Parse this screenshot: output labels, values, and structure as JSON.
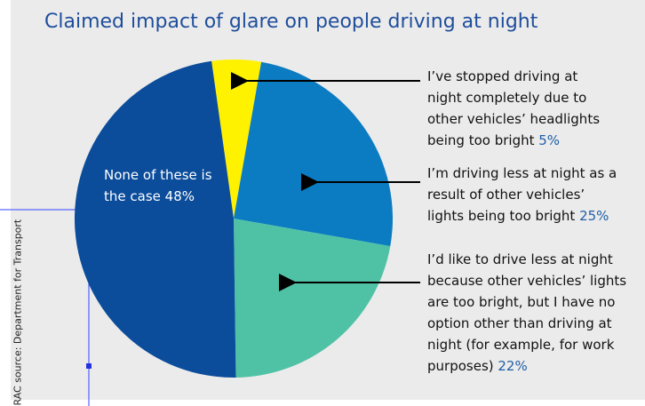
{
  "chart_data": {
    "type": "pie",
    "title": "Claimed impact of glare on people driving at night",
    "categories": [
      "I’ve stopped driving at night completely due to other vehicles’ headlights being too bright",
      "I’m driving less at night as a result of other vehicles’ lights being too bright",
      "I’d like to drive less at night because other vehicles’ lights are too bright, but I have no option other than driving at night (for example, for work purposes)",
      "None of these is the case"
    ],
    "values": [
      5,
      25,
      22,
      48
    ],
    "value_labels": [
      "5%",
      "25%",
      "22%",
      "48%"
    ],
    "colors": [
      "#fff200",
      "#0b7cc2",
      "#4fc2a6",
      "#0b4c9b"
    ],
    "source": "RAC source: Department for Transport"
  }
}
